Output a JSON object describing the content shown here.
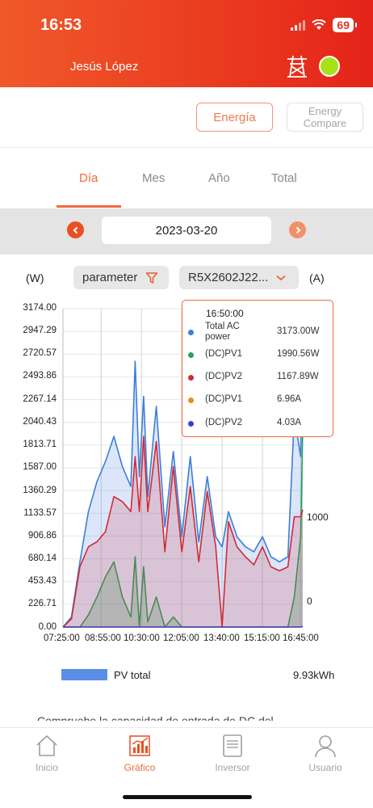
{
  "status_bar": {
    "time": "16:53",
    "battery": "69"
  },
  "header": {
    "user_name": "Jesús López"
  },
  "toolbar": {
    "energia_label": "Energía",
    "energy_compare_label": "Energy\nCompare"
  },
  "period_tabs": [
    {
      "label": "Día",
      "active": true
    },
    {
      "label": "Mes",
      "active": false
    },
    {
      "label": "Año",
      "active": false
    },
    {
      "label": "Total",
      "active": false
    }
  ],
  "date_selector": {
    "date": "2023-03-20"
  },
  "filters": {
    "unit_left": "(W)",
    "unit_right": "(A)",
    "parameter_label": "parameter",
    "device_label": "R5X2602J22..."
  },
  "colors": {
    "accent": "#ef6a3e",
    "ac_power": "#3d7fd6",
    "pv1_power": "#2aa05a",
    "pv2_power": "#d22b36",
    "pv1_current": "#f08a1c",
    "pv2_current": "#3a3fd0",
    "pv_total": "#5b8ee6"
  },
  "tooltip": {
    "time": "16:50:00",
    "rows": [
      {
        "label": "Total AC power",
        "value": "3173.00W",
        "color": "#3d7fd6"
      },
      {
        "label": "(DC)PV1",
        "value": "1990.56W",
        "color": "#2aa05a"
      },
      {
        "label": "(DC)PV2",
        "value": "1167.89W",
        "color": "#d22b36"
      },
      {
        "label": "(DC)PV1",
        "value": "6.96A",
        "color": "#f08a1c"
      },
      {
        "label": "(DC)PV2",
        "value": "4.03A",
        "color": "#3a3fd0"
      }
    ]
  },
  "chart_data": {
    "type": "line",
    "x": [
      "07:25",
      "07:45",
      "08:05",
      "08:25",
      "08:45",
      "09:05",
      "09:25",
      "09:45",
      "10:05",
      "10:15",
      "10:25",
      "10:35",
      "10:45",
      "11:05",
      "11:25",
      "11:45",
      "12:05",
      "12:25",
      "12:45",
      "13:05",
      "13:25",
      "13:40",
      "13:55",
      "14:15",
      "14:35",
      "14:55",
      "15:15",
      "15:35",
      "15:55",
      "16:15",
      "16:30",
      "16:45",
      "16:50"
    ],
    "x_tick_labels": [
      "07:25:00",
      "08:55:00",
      "10:30:00",
      "12:05:00",
      "13:40:00",
      "15:15:00",
      "16:45:00"
    ],
    "y_ticks": [
      "3174.00",
      "2947.29",
      "2720.57",
      "2493.86",
      "2267.14",
      "2040.43",
      "1813.71",
      "1587.00",
      "1360.29",
      "1133.57",
      "906.86",
      "680.14",
      "453.43",
      "226.71",
      "0.00"
    ],
    "y2_ticks": [
      "1000",
      "0"
    ],
    "ylim": [
      0,
      3174
    ],
    "series": [
      {
        "name": "Total AC power",
        "values": [
          0,
          100,
          650,
          1150,
          1450,
          1650,
          1900,
          1600,
          1400,
          2650,
          1500,
          2300,
          1300,
          2200,
          1000,
          1750,
          900,
          1700,
          850,
          1500,
          900,
          800,
          1150,
          900,
          800,
          750,
          900,
          700,
          650,
          700,
          2100,
          1700,
          3173
        ]
      },
      {
        "name": "(DC)PV1",
        "values": [
          0,
          0,
          0,
          120,
          300,
          500,
          650,
          300,
          100,
          700,
          0,
          600,
          50,
          300,
          0,
          100,
          0,
          0,
          0,
          0,
          0,
          0,
          0,
          0,
          0,
          0,
          0,
          0,
          0,
          0,
          300,
          900,
          1990.56
        ]
      },
      {
        "name": "(DC)PV2",
        "values": [
          0,
          80,
          600,
          800,
          850,
          950,
          1300,
          1250,
          1150,
          1700,
          1150,
          1900,
          1150,
          1850,
          750,
          1600,
          750,
          1400,
          650,
          1350,
          800,
          0,
          1050,
          800,
          700,
          620,
          800,
          600,
          560,
          600,
          1100,
          1100,
          1167.89
        ]
      },
      {
        "name": "(DC)PV1",
        "values": [
          0,
          0,
          0,
          0,
          0,
          0,
          0,
          0,
          0,
          0,
          0,
          0,
          0,
          0,
          0,
          0,
          0,
          0,
          0,
          0,
          0,
          0,
          0,
          0,
          0,
          0,
          0,
          0,
          0,
          0,
          0,
          0,
          6.96
        ]
      },
      {
        "name": "(DC)PV2",
        "values": [
          0,
          0,
          0,
          0,
          0,
          0,
          0,
          0,
          0,
          0,
          0,
          0,
          0,
          0,
          0,
          0,
          0,
          0,
          0,
          0,
          0,
          0,
          0,
          0,
          0,
          0,
          0,
          0,
          0,
          0,
          0,
          0,
          4.03
        ]
      }
    ]
  },
  "summary": {
    "legend_label": "PV total",
    "total_energy": "9.93kWh",
    "info_text": "Compruebe la capacidad de entrada de DC del"
  },
  "bottom_nav": [
    {
      "label": "Inicio",
      "icon": "home-icon",
      "active": false
    },
    {
      "label": "Gráfico",
      "icon": "chart-icon",
      "active": true
    },
    {
      "label": "Inversor",
      "icon": "inverter-icon",
      "active": false
    },
    {
      "label": "Usuario",
      "icon": "user-icon",
      "active": false
    }
  ]
}
